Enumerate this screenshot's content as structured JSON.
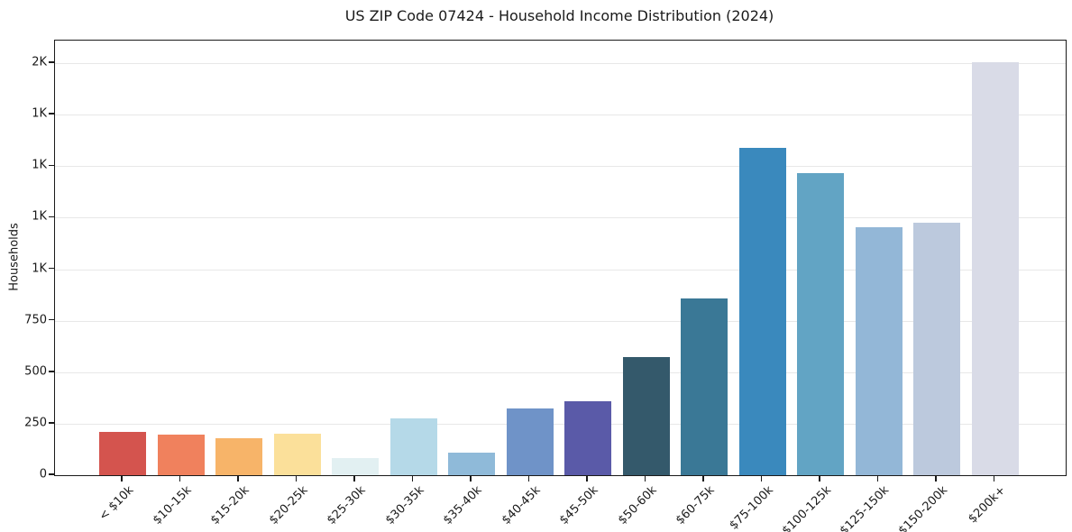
{
  "chart_data": {
    "type": "bar",
    "title": "US ZIP Code 07424 - Household Income Distribution (2024)",
    "xlabel": "",
    "ylabel": "Households",
    "categories": [
      "< $10k",
      "$10-15k",
      "$15-20k",
      "$20-25k",
      "$25-30k",
      "$30-35k",
      "$35-40k",
      "$40-45k",
      "$45-50k",
      "$50-60k",
      "$60-75k",
      "$75-100k",
      "$100-125k",
      "$125-150k",
      "$150-200k",
      "$200k+"
    ],
    "values": [
      210,
      195,
      180,
      200,
      85,
      275,
      110,
      325,
      360,
      575,
      860,
      1590,
      1465,
      1205,
      1225,
      2005
    ],
    "bar_colors": [
      "#d4544e",
      "#f0815d",
      "#f7b469",
      "#fbe09a",
      "#e2f0f2",
      "#b5d9e8",
      "#8fbad9",
      "#6f93c8",
      "#5a5aa8",
      "#34596b",
      "#3a7896",
      "#3a89bd",
      "#62a4c4",
      "#93b7d7",
      "#bcc9dd",
      "#d9dbe7"
    ],
    "ylim": [
      0,
      2110
    ],
    "yticks": [
      {
        "value": 0,
        "label": "0"
      },
      {
        "value": 250,
        "label": "250"
      },
      {
        "value": 500,
        "label": "500"
      },
      {
        "value": 750,
        "label": "750"
      },
      {
        "value": 1000,
        "label": "1K"
      },
      {
        "value": 1250,
        "label": "1K"
      },
      {
        "value": 1500,
        "label": "1K"
      },
      {
        "value": 1750,
        "label": "1K"
      },
      {
        "value": 2000,
        "label": "2K"
      }
    ],
    "grid": "horizontal",
    "legend": "none",
    "x_tick_rotation": 45
  }
}
